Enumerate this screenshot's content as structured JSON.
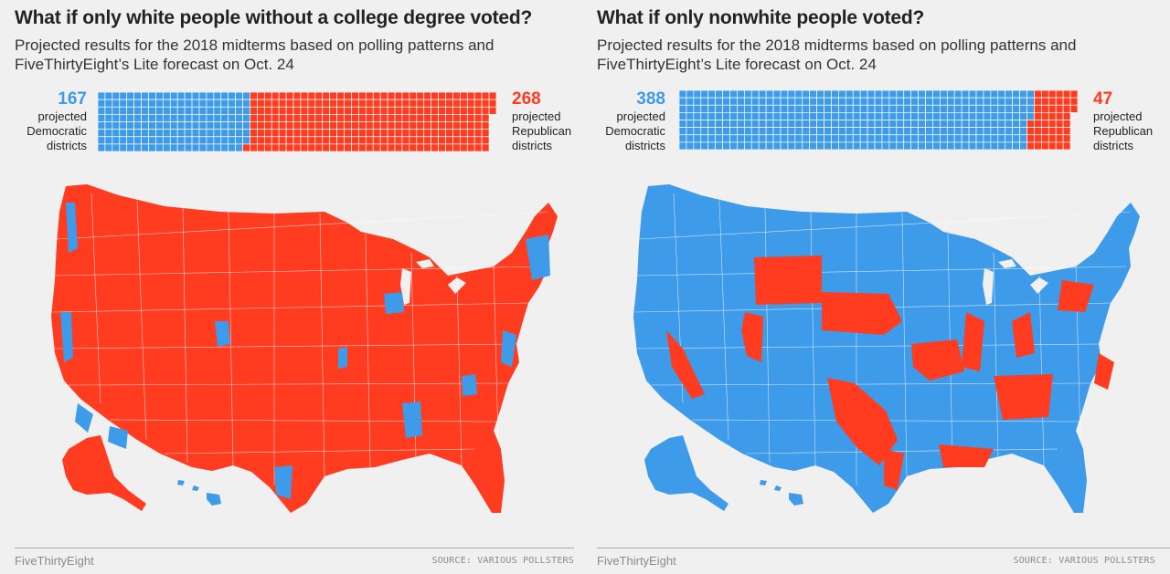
{
  "colors": {
    "democratic": "#3d9be9",
    "republican": "#ff3b20",
    "border": "#ffffff"
  },
  "panels": [
    {
      "title": "What if only white people without a college degree voted?",
      "subtitle": "Projected results for the 2018 midterms based on polling patterns and FiveThirtyEight’s Lite forecast on Oct. 24",
      "dem_count": "167",
      "dem_label_lines": [
        "projected",
        "Democratic",
        "districts"
      ],
      "rep_count": "268",
      "rep_label_lines": [
        "projected",
        "Republican",
        "districts"
      ],
      "waffle": {
        "total": 435,
        "democratic": 167,
        "republican": 268
      },
      "map_majority": "republican"
    },
    {
      "title": "What if only nonwhite people voted?",
      "subtitle": "Projected results for the 2018 midterms based on polling patterns and FiveThirtyEight’s Lite forecast on Oct. 24",
      "dem_count": "388",
      "dem_label_lines": [
        "projected",
        "Democratic",
        "districts"
      ],
      "rep_count": "47",
      "rep_label_lines": [
        "projected",
        "Republican",
        "districts"
      ],
      "waffle": {
        "total": 435,
        "democratic": 388,
        "republican": 47
      },
      "map_majority": "democratic"
    }
  ],
  "footer": {
    "brand": "FiveThirtyEight",
    "source": "SOURCE: VARIOUS POLLSTERS"
  }
}
